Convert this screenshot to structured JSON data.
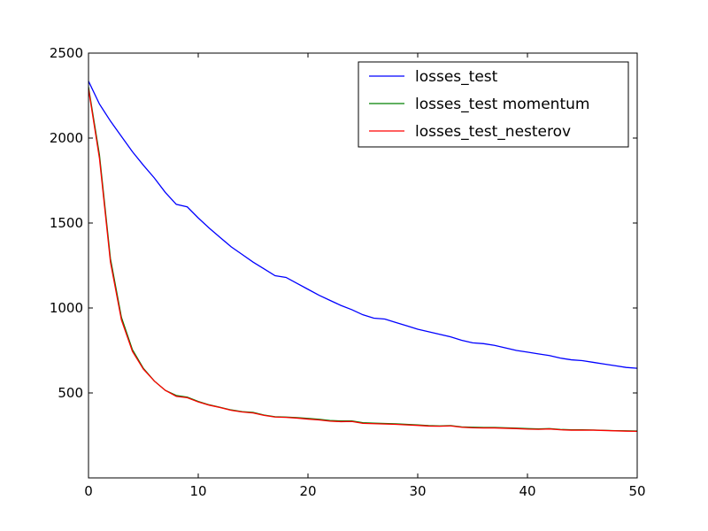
{
  "chart_data": {
    "type": "line",
    "title": "",
    "xlabel": "",
    "ylabel": "",
    "xlim": [
      0,
      50
    ],
    "ylim": [
      0,
      2500
    ],
    "xticks": [
      0,
      10,
      20,
      30,
      40,
      50
    ],
    "yticks": [
      500,
      1000,
      1500,
      2000,
      2500
    ],
    "grid": false,
    "legend_position": "top-right",
    "x": [
      0,
      1,
      2,
      3,
      4,
      5,
      6,
      7,
      8,
      9,
      10,
      11,
      12,
      13,
      14,
      15,
      16,
      17,
      18,
      19,
      20,
      21,
      22,
      23,
      24,
      25,
      26,
      27,
      28,
      29,
      30,
      31,
      32,
      33,
      34,
      35,
      36,
      37,
      38,
      39,
      40,
      41,
      42,
      43,
      44,
      45,
      46,
      47,
      48,
      49,
      50
    ],
    "series": [
      {
        "name": "losses_test",
        "color": "#0000ff",
        "values": [
          2335,
          2200,
          2100,
          2010,
          1920,
          1840,
          1765,
          1680,
          1610,
          1595,
          1530,
          1470,
          1415,
          1360,
          1315,
          1270,
          1230,
          1190,
          1180,
          1145,
          1110,
          1075,
          1045,
          1015,
          990,
          960,
          940,
          935,
          915,
          895,
          875,
          860,
          845,
          830,
          810,
          795,
          790,
          780,
          765,
          750,
          740,
          730,
          720,
          705,
          695,
          690,
          680,
          670,
          660,
          650,
          645
        ]
      },
      {
        "name": "losses_test momentum",
        "color": "#008000",
        "values": [
          2300,
          1900,
          1290,
          945,
          755,
          645,
          570,
          515,
          485,
          475,
          450,
          430,
          415,
          400,
          390,
          385,
          370,
          360,
          358,
          355,
          350,
          345,
          338,
          335,
          335,
          325,
          322,
          320,
          318,
          315,
          312,
          308,
          306,
          308,
          300,
          298,
          297,
          297,
          295,
          293,
          290,
          288,
          290,
          285,
          283,
          283,
          282,
          280,
          278,
          277,
          276
        ]
      },
      {
        "name": "losses_test_nesterov",
        "color": "#ff0000",
        "values": [
          2290,
          1880,
          1270,
          930,
          745,
          640,
          570,
          515,
          480,
          472,
          447,
          428,
          414,
          398,
          388,
          382,
          368,
          358,
          356,
          352,
          346,
          341,
          334,
          331,
          332,
          321,
          319,
          317,
          315,
          312,
          309,
          305,
          304,
          306,
          298,
          295,
          294,
          294,
          292,
          290,
          287,
          286,
          288,
          283,
          281,
          281,
          281,
          279,
          277,
          275,
          274
        ]
      }
    ]
  }
}
